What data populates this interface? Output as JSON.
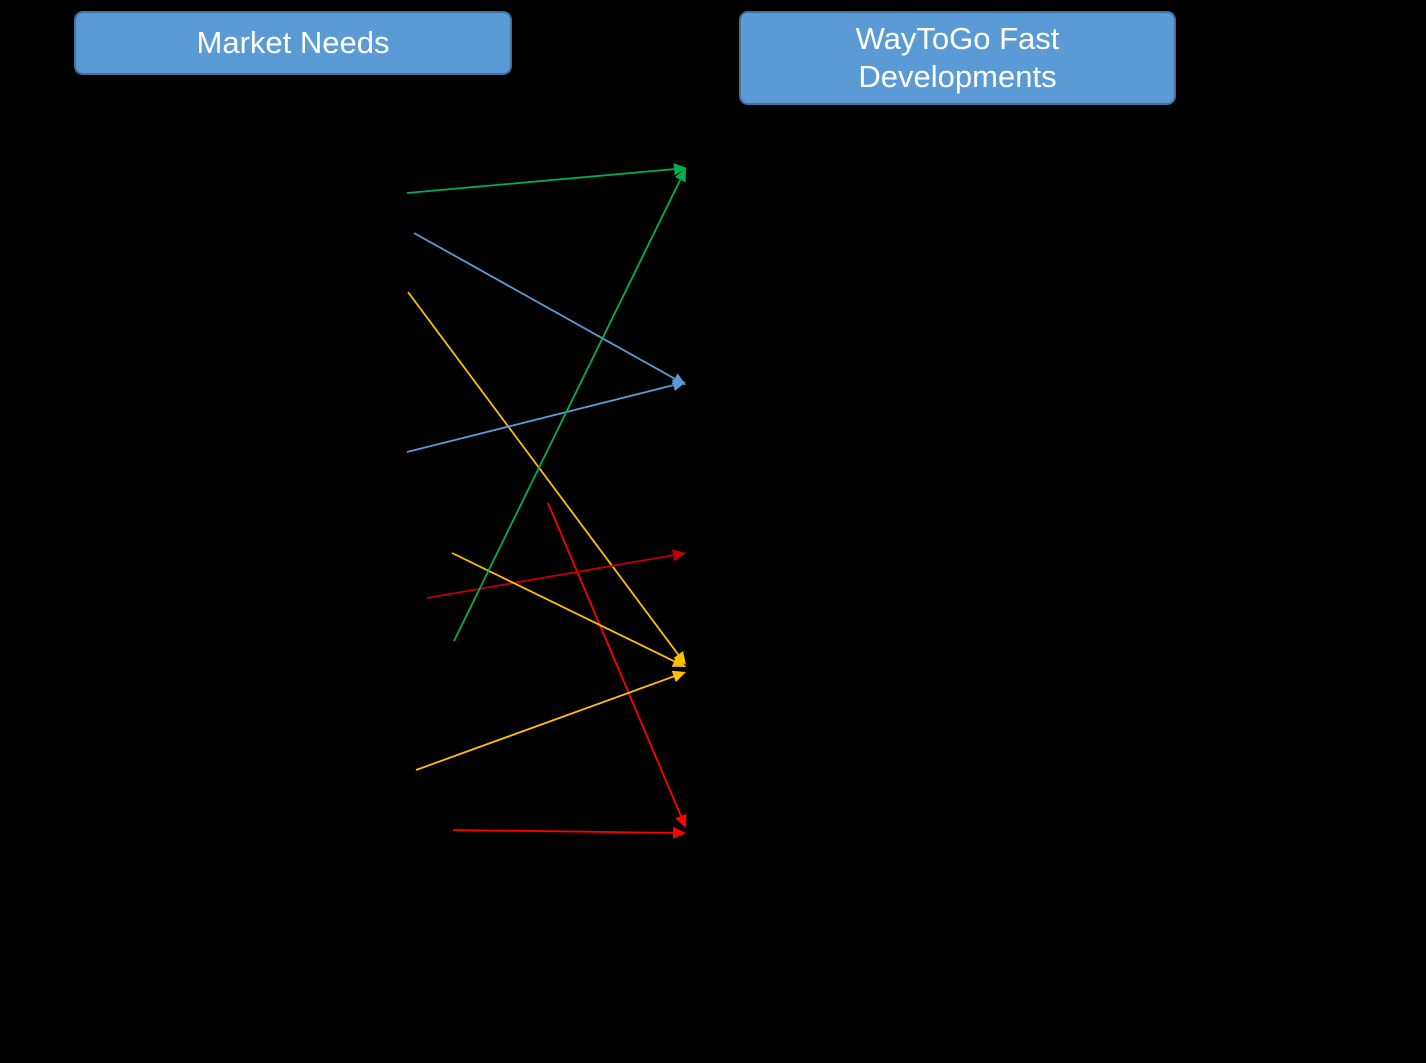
{
  "headers": {
    "left": "Market Needs",
    "right": "WayToGo Fast Developments"
  },
  "colors": {
    "background": "#000000",
    "box_fill": "#5b9bd5",
    "green": "#00b050",
    "blue": "#5b9bd5",
    "yellow": "#ffc000",
    "red": "#ff0000",
    "dark_red": "#c00000"
  },
  "connectors": [
    {
      "color": "green",
      "target": 1
    },
    {
      "color": "blue",
      "target": 2
    },
    {
      "color": "yellow",
      "target": 4
    },
    {
      "color": "blue",
      "target": 2
    },
    {
      "color": "red",
      "target": 5
    },
    {
      "color": "dark_red",
      "target": 3
    },
    {
      "color": "yellow",
      "target": 4
    },
    {
      "color": "green",
      "target": 1
    },
    {
      "color": "yellow",
      "target": 4
    },
    {
      "color": "red",
      "target": 5
    }
  ]
}
